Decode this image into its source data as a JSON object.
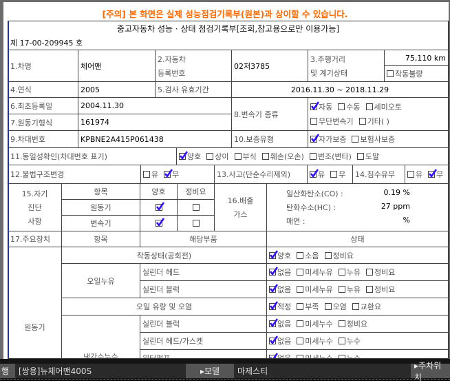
{
  "notice": "[주의] 본 화면은 실제 성능점검기록부(원본)과 상이할 수 있습니다.",
  "doc": {
    "title": "중고자동차 성능 · 상태 점검기록부[조회,참고용으로만 이용가능]",
    "number": "제 17-00-209945 호",
    "car_name_label": "1.차명",
    "car_name": "체어맨",
    "reg_label1": "2.자동차",
    "reg_label2": "등록번호",
    "reg_no": "02저3785",
    "mileage_label1": "3.주행거리",
    "mileage_label2": "및 계기상태",
    "mileage": "75,110 km",
    "gauge": [
      [
        {
          "label": "작동불량",
          "checked": false
        }
      ]
    ],
    "year_label": "4.연식",
    "year": "2005",
    "valid_label": "5.검사 유효기간",
    "valid": "2016.11.30 ~ 2018.11.29",
    "first_reg_label": "6.최초등록일",
    "first_reg": "2004.11.30",
    "engine_type_label": "7.원동기형식",
    "engine_type": "161974",
    "trans_label": "8.변속기 종류",
    "trans": [
      [
        {
          "label": "자동",
          "checked": true
        },
        {
          "label": "수동",
          "checked": false
        },
        {
          "label": "세미오토",
          "checked": false
        }
      ],
      [
        {
          "label": "무단변속기",
          "checked": false
        },
        {
          "label": "기타(   )",
          "checked": false
        }
      ]
    ],
    "vin_label": "9.차대번호",
    "vin": "KPBNE2A415P061438",
    "warranty_label": "10.보증유형",
    "warranty": [
      [
        {
          "label": "자가보증",
          "checked": true
        },
        {
          "label": "보험사보증",
          "checked": false
        }
      ]
    ],
    "identity_label": "11.동일성확인(차대번호 표기)",
    "identity": [
      [
        {
          "label": "양호",
          "checked": true
        },
        {
          "label": "상이",
          "checked": false
        },
        {
          "label": "부식",
          "checked": false
        },
        {
          "label": "훼손(오손)",
          "checked": false
        },
        {
          "label": "변조(변타)",
          "checked": false
        },
        {
          "label": "도말",
          "checked": false
        }
      ]
    ],
    "illegal_label": "12.불법구조변경",
    "illegal": [
      [
        {
          "label": "유",
          "checked": false
        },
        {
          "label": "무",
          "checked": true
        }
      ]
    ],
    "accident_label": "13.사고(단순수리제외)",
    "accident": [
      [
        {
          "label": "유",
          "checked": true
        },
        {
          "label": "무",
          "checked": false
        }
      ]
    ],
    "flood_label": "14.침수유무",
    "flood": [
      [
        {
          "label": "유",
          "checked": false
        },
        {
          "label": "무",
          "checked": true
        }
      ]
    ],
    "selfdiag_label": [
      "15.자기",
      "진단",
      "사항"
    ],
    "selfdiag_head": {
      "item": "항목",
      "good": "양호",
      "repair": "정비요"
    },
    "selfdiag_rows": [
      {
        "item": "원동기",
        "good": true,
        "repair": false
      },
      {
        "item": "변속기",
        "good": true,
        "repair": false
      }
    ],
    "emission_label": [
      "16.배출",
      "가스"
    ],
    "emission": [
      {
        "label": "일산화탄소(CO) :",
        "value": "0.19 %"
      },
      {
        "label": "탄화수소(HC) :",
        "value": "27 ppm"
      },
      {
        "label": "매연 :",
        "value": "%"
      }
    ],
    "major_label": "17.주요장치",
    "major_head": {
      "item": "항목",
      "part": "해당부품",
      "state": "상태"
    },
    "engine_label": "원동기",
    "idle_label": "작동상태(공회전)",
    "idle": [
      [
        {
          "label": "양호",
          "checked": true
        },
        {
          "label": "소음",
          "checked": false
        },
        {
          "label": "정비요",
          "checked": false
        }
      ]
    ],
    "oil_leak_label": "오일누유",
    "oil_head_label": "실린더 헤드",
    "oil_head": [
      [
        {
          "label": "없음",
          "checked": true
        },
        {
          "label": "미세누유",
          "checked": false
        },
        {
          "label": "누유",
          "checked": false
        },
        {
          "label": "정비요",
          "checked": false
        }
      ]
    ],
    "oil_block_label": "실린더 블럭",
    "oil_block": [
      [
        {
          "label": "없음",
          "checked": true
        },
        {
          "label": "미세누유",
          "checked": false
        },
        {
          "label": "누유",
          "checked": false
        },
        {
          "label": "정비요",
          "checked": false
        }
      ]
    ],
    "oil_level_label": "오일 유량 및 오염",
    "oil_level": [
      [
        {
          "label": "적정",
          "checked": true
        },
        {
          "label": "부족",
          "checked": false
        },
        {
          "label": "오염",
          "checked": false
        },
        {
          "label": "교환요",
          "checked": false
        }
      ]
    ],
    "coolant_label": "냉각수누수",
    "cool_block_label": "실린더 블럭",
    "cool_block": [
      [
        {
          "label": "없음",
          "checked": true
        },
        {
          "label": "미세누수",
          "checked": false
        },
        {
          "label": "정비요",
          "checked": false
        }
      ]
    ],
    "cool_head_label": "실린더 헤드/가스켓",
    "cool_head": [
      [
        {
          "label": "없음",
          "checked": true
        },
        {
          "label": "미세누수",
          "checked": false
        },
        {
          "label": "누수",
          "checked": false
        }
      ]
    ],
    "pump_label": "워터펌프",
    "pump": [
      [
        {
          "label": "없음",
          "checked": true
        },
        {
          "label": "미세누수",
          "checked": false
        },
        {
          "label": "누수",
          "checked": false
        }
      ]
    ]
  },
  "bottom_bar": {
    "left_label": "행",
    "car_model": "[쌍용]뉴체어맨400S",
    "model_button": "▸모델",
    "model_value": "마제스티",
    "parking_button": "▸주차위치"
  },
  "colors": {
    "notice": "#ff6a00",
    "check": "#3311ff",
    "border_accent": "#2233aa"
  }
}
